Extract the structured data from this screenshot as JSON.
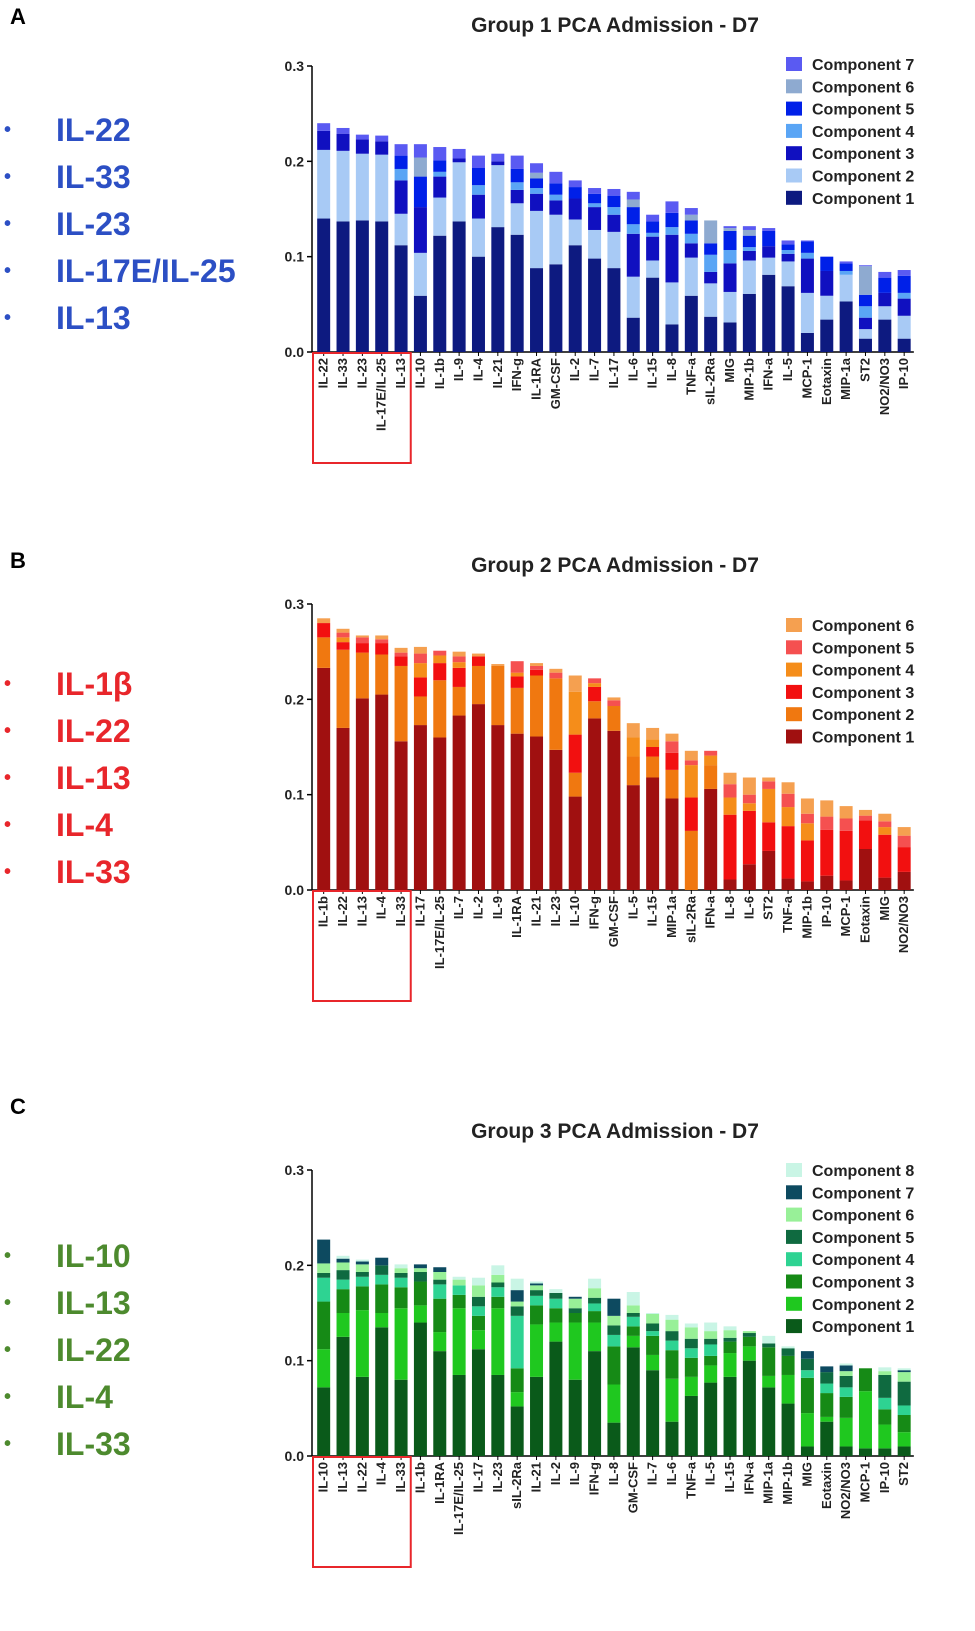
{
  "panels": [
    {
      "letter": "A",
      "cytokine_list": {
        "color": "#2c4fc4",
        "items": [
          "IL-22",
          "IL-33",
          "IL-23",
          "IL-17E/IL-25",
          "IL-13"
        ]
      },
      "chart_data": {
        "type": "bar",
        "stacked": true,
        "title": "Group 1 PCA  Admission -  D7",
        "xlabel": "",
        "ylabel": "",
        "ylim": [
          0,
          0.3
        ],
        "yticks": [
          "0.0",
          "0.1",
          "0.2",
          "0.3"
        ],
        "highlight_first_n": 5,
        "highlight_color": "#e8262b",
        "categories": [
          "IL-22",
          "IL-33",
          "IL-23",
          "IL-17E/IL-25",
          "IL-13",
          "IL-10",
          "IL-1b",
          "IL-9",
          "IL-4",
          "IL-21",
          "IFN-g",
          "IL-1RA",
          "GM-CSF",
          "IL-2",
          "IL-7",
          "IL-17",
          "IL-6",
          "IL-15",
          "IL-8",
          "TNF-a",
          "sIL-2Ra",
          "MIG",
          "MIP-1b",
          "IFN-a",
          "IL-5",
          "MCP-1",
          "Eotaxin",
          "MIP-1a",
          "ST2",
          "NO2/NO3",
          "IP-10"
        ],
        "series": [
          {
            "name": "Component 1",
            "color": "#0d1a80",
            "values": [
              0.14,
              0.137,
              0.138,
              0.137,
              0.112,
              0.059,
              0.122,
              0.137,
              0.1,
              0.131,
              0.123,
              0.088,
              0.092,
              0.112,
              0.098,
              0.088,
              0.036,
              0.078,
              0.029,
              0.059,
              0.037,
              0.031,
              0.061,
              0.081,
              0.069,
              0.02,
              0.034,
              0.053,
              0.014,
              0.034,
              0.014
            ]
          },
          {
            "name": "Component 2",
            "color": "#a8caf5",
            "values": [
              0.072,
              0.074,
              0.07,
              0.07,
              0.033,
              0.045,
              0.04,
              0.062,
              0.04,
              0.065,
              0.033,
              0.06,
              0.052,
              0.027,
              0.03,
              0.038,
              0.043,
              0.018,
              0.044,
              0.04,
              0.035,
              0.032,
              0.035,
              0.018,
              0.026,
              0.042,
              0.025,
              0.028,
              0.01,
              0.014,
              0.024
            ]
          },
          {
            "name": "Component 3",
            "color": "#1010c0",
            "values": [
              0.02,
              0.018,
              0.015,
              0.014,
              0.035,
              0.048,
              0.022,
              0.004,
              0.025,
              0.004,
              0.014,
              0.018,
              0.015,
              0.022,
              0.024,
              0.018,
              0.045,
              0.025,
              0.05,
              0.015,
              0.012,
              0.03,
              0.01,
              0.012,
              0.008,
              0.036,
              0.026,
              0.0,
              0.012,
              0.014,
              0.018
            ]
          },
          {
            "name": "Component 4",
            "color": "#5aa5f5",
            "values": [
              0.0,
              0.0,
              0.0,
              0.0,
              0.012,
              0.0,
              0.005,
              0.0,
              0.01,
              0.0,
              0.008,
              0.006,
              0.006,
              0.0,
              0.004,
              0.008,
              0.01,
              0.004,
              0.008,
              0.01,
              0.018,
              0.014,
              0.004,
              0.0,
              0.004,
              0.006,
              0.0,
              0.004,
              0.012,
              0.0,
              0.006
            ]
          },
          {
            "name": "Component 5",
            "color": "#0020e8",
            "values": [
              0.0,
              0.0,
              0.0,
              0.0,
              0.014,
              0.032,
              0.012,
              0.0,
              0.018,
              0.0,
              0.014,
              0.01,
              0.012,
              0.012,
              0.01,
              0.012,
              0.018,
              0.012,
              0.015,
              0.014,
              0.012,
              0.02,
              0.012,
              0.016,
              0.006,
              0.012,
              0.015,
              0.008,
              0.012,
              0.016,
              0.018
            ]
          },
          {
            "name": "Component 6",
            "color": "#8eaad0",
            "values": [
              0.0,
              0.0,
              0.0,
              0.0,
              0.0,
              0.02,
              0.0,
              0.0,
              0.0,
              0.0,
              0.0,
              0.006,
              0.0,
              0.0,
              0.0,
              0.0,
              0.008,
              0.0,
              0.0,
              0.006,
              0.024,
              0.003,
              0.006,
              0.0,
              0.0,
              0.0,
              0.0,
              0.0,
              0.03,
              0.0,
              0.0
            ]
          },
          {
            "name": "Component 7",
            "color": "#5a5af2",
            "values": [
              0.008,
              0.006,
              0.005,
              0.006,
              0.012,
              0.014,
              0.014,
              0.01,
              0.013,
              0.008,
              0.014,
              0.01,
              0.012,
              0.007,
              0.006,
              0.007,
              0.008,
              0.007,
              0.012,
              0.007,
              0.0,
              0.002,
              0.004,
              0.003,
              0.004,
              0.001,
              0.0,
              0.002,
              0.001,
              0.006,
              0.006
            ]
          }
        ]
      }
    },
    {
      "letter": "B",
      "cytokine_list": {
        "color": "#e8262b",
        "items": [
          "IL-1β",
          "IL-22",
          "IL-13",
          "IL-4",
          "IL-33"
        ]
      },
      "chart_data": {
        "type": "bar",
        "stacked": true,
        "title": "Group 2 PCA  Admission -  D7",
        "xlabel": "",
        "ylabel": "",
        "ylim": [
          0,
          0.3
        ],
        "yticks": [
          "0.0",
          "0.1",
          "0.2",
          "0.3"
        ],
        "highlight_first_n": 5,
        "highlight_color": "#e8262b",
        "categories": [
          "IL-1b",
          "IL-22",
          "IL-13",
          "IL-4",
          "IL-33",
          "IL-17",
          "IL-17E/IL-25",
          "IL-7",
          "IL-2",
          "IL-9",
          "IL-1RA",
          "IL-21",
          "IL-23",
          "IL-10",
          "IFN-g",
          "GM-CSF",
          "IL-5",
          "IL-15",
          "MIP-1a",
          "sIL-2Ra",
          "IFN-a",
          "IL-8",
          "IL-6",
          "ST2",
          "TNF-a",
          "MIP-1b",
          "IP-10",
          "MCP-1",
          "Eotaxin",
          "MIG",
          "NO2/NO3"
        ],
        "series": [
          {
            "name": "Component 1",
            "color": "#a01010",
            "values": [
              0.233,
              0.17,
              0.201,
              0.205,
              0.156,
              0.173,
              0.16,
              0.183,
              0.195,
              0.173,
              0.164,
              0.161,
              0.147,
              0.098,
              0.18,
              0.167,
              0.11,
              0.118,
              0.096,
              0.0,
              0.106,
              0.011,
              0.027,
              0.041,
              0.012,
              0.009,
              0.015,
              0.01,
              0.043,
              0.013,
              0.019
            ]
          },
          {
            "name": "Component 2",
            "color": "#f07810",
            "values": [
              0.032,
              0.082,
              0.048,
              0.042,
              0.079,
              0.03,
              0.06,
              0.03,
              0.04,
              0.062,
              0.048,
              0.064,
              0.075,
              0.025,
              0.018,
              0.026,
              0.03,
              0.022,
              0.03,
              0.062,
              0.025,
              0.0,
              0.0,
              0.0,
              0.0,
              0.0,
              0.0,
              0.0,
              0.0,
              0.0,
              0.0
            ]
          },
          {
            "name": "Component 3",
            "color": "#f21010",
            "values": [
              0.015,
              0.008,
              0.01,
              0.012,
              0.01,
              0.02,
              0.018,
              0.02,
              0.01,
              0.0,
              0.012,
              0.006,
              0.0,
              0.04,
              0.015,
              0.0,
              0.0,
              0.01,
              0.018,
              0.035,
              0.0,
              0.068,
              0.056,
              0.03,
              0.055,
              0.043,
              0.048,
              0.052,
              0.03,
              0.045,
              0.026
            ]
          },
          {
            "name": "Component 4",
            "color": "#f58d1a",
            "values": [
              0.0,
              0.005,
              0.0,
              0.0,
              0.0,
              0.015,
              0.008,
              0.006,
              0.0,
              0.0,
              0.004,
              0.0,
              0.0,
              0.045,
              0.004,
              0.0,
              0.02,
              0.008,
              0.0,
              0.034,
              0.01,
              0.018,
              0.008,
              0.035,
              0.02,
              0.018,
              0.0,
              0.0,
              0.0,
              0.008,
              0.0
            ]
          },
          {
            "name": "Component 5",
            "color": "#f55050",
            "values": [
              0.0,
              0.005,
              0.006,
              0.004,
              0.004,
              0.01,
              0.005,
              0.006,
              0.0,
              0.0,
              0.012,
              0.004,
              0.006,
              0.0,
              0.005,
              0.006,
              0.0,
              0.0,
              0.012,
              0.005,
              0.005,
              0.014,
              0.009,
              0.008,
              0.014,
              0.01,
              0.014,
              0.013,
              0.005,
              0.006,
              0.012
            ]
          },
          {
            "name": "Component 6",
            "color": "#f5a050",
            "values": [
              0.005,
              0.004,
              0.002,
              0.004,
              0.005,
              0.007,
              0.0,
              0.005,
              0.003,
              0.002,
              0.0,
              0.003,
              0.004,
              0.017,
              0.0,
              0.003,
              0.015,
              0.012,
              0.008,
              0.01,
              0.0,
              0.012,
              0.018,
              0.004,
              0.012,
              0.016,
              0.017,
              0.013,
              0.006,
              0.008,
              0.009
            ]
          }
        ]
      }
    },
    {
      "letter": "C",
      "cytokine_list": {
        "color": "#4d8a2e",
        "items": [
          "IL-10",
          "IL-13",
          "IL-22",
          "IL-4",
          "IL-33"
        ]
      },
      "chart_data": {
        "type": "bar",
        "stacked": true,
        "title": "Group 3 PCA  Admission -  D7",
        "xlabel": "",
        "ylabel": "",
        "ylim": [
          0,
          0.3
        ],
        "yticks": [
          "0.0",
          "0.1",
          "0.2",
          "0.3"
        ],
        "highlight_first_n": 5,
        "highlight_color": "#e8262b",
        "categories": [
          "IL-10",
          "IL-13",
          "IL-22",
          "IL-4",
          "IL-33",
          "IL-1b",
          "IL-1RA",
          "IL-17E/IL-25",
          "IL-17",
          "IL-23",
          "sIL-2Ra",
          "IL-21",
          "IL-2",
          "IL-9",
          "IFN-g",
          "IL-8",
          "GM-CSF",
          "IL-7",
          "IL-6",
          "TNF-a",
          "IL-5",
          "IL-15",
          "IFN-a",
          "MIP-1a",
          "MIP-1b",
          "MIG",
          "Eotaxin",
          "NO2/NO3",
          "MCP-1",
          "IP-10",
          "ST2"
        ],
        "series": [
          {
            "name": "Component 1",
            "color": "#0a5a1a",
            "values": [
              0.072,
              0.125,
              0.083,
              0.135,
              0.08,
              0.14,
              0.11,
              0.085,
              0.112,
              0.085,
              0.052,
              0.083,
              0.12,
              0.08,
              0.11,
              0.035,
              0.114,
              0.09,
              0.036,
              0.063,
              0.077,
              0.083,
              0.1,
              0.072,
              0.055,
              0.01,
              0.036,
              0.01,
              0.008,
              0.008,
              0.01
            ]
          },
          {
            "name": "Component 2",
            "color": "#1fc81f",
            "values": [
              0.04,
              0.025,
              0.07,
              0.015,
              0.075,
              0.018,
              0.02,
              0.07,
              0.02,
              0.07,
              0.015,
              0.055,
              0.02,
              0.06,
              0.03,
              0.04,
              0.012,
              0.016,
              0.045,
              0.02,
              0.018,
              0.025,
              0.015,
              0.012,
              0.03,
              0.035,
              0.005,
              0.03,
              0.06,
              0.025,
              0.015
            ]
          },
          {
            "name": "Component 3",
            "color": "#168a16",
            "values": [
              0.05,
              0.025,
              0.025,
              0.03,
              0.022,
              0.025,
              0.035,
              0.014,
              0.015,
              0.012,
              0.025,
              0.02,
              0.015,
              0.01,
              0.012,
              0.04,
              0.01,
              0.02,
              0.03,
              0.02,
              0.01,
              0.012,
              0.01,
              0.03,
              0.02,
              0.037,
              0.025,
              0.022,
              0.024,
              0.016,
              0.018
            ]
          },
          {
            "name": "Component 4",
            "color": "#2ed392",
            "values": [
              0.025,
              0.01,
              0.01,
              0.01,
              0.01,
              0.0,
              0.015,
              0.01,
              0.01,
              0.01,
              0.055,
              0.01,
              0.01,
              0.0,
              0.008,
              0.012,
              0.01,
              0.005,
              0.01,
              0.01,
              0.012,
              0.0,
              0.0,
              0.0,
              0.0,
              0.008,
              0.01,
              0.01,
              0.0,
              0.012,
              0.01
            ]
          },
          {
            "name": "Component 5",
            "color": "#0f6a40",
            "values": [
              0.005,
              0.01,
              0.005,
              0.01,
              0.005,
              0.01,
              0.005,
              0.0,
              0.01,
              0.005,
              0.01,
              0.006,
              0.006,
              0.005,
              0.006,
              0.01,
              0.004,
              0.008,
              0.01,
              0.01,
              0.006,
              0.004,
              0.004,
              0.004,
              0.008,
              0.012,
              0.012,
              0.012,
              0.0,
              0.024,
              0.025
            ]
          },
          {
            "name": "Component 6",
            "color": "#98f098",
            "values": [
              0.01,
              0.008,
              0.008,
              0.0,
              0.005,
              0.004,
              0.008,
              0.006,
              0.012,
              0.008,
              0.005,
              0.005,
              0.0,
              0.01,
              0.01,
              0.01,
              0.008,
              0.01,
              0.012,
              0.012,
              0.008,
              0.008,
              0.002,
              0.0,
              0.0,
              0.0,
              0.0,
              0.005,
              0.0,
              0.004,
              0.01
            ]
          },
          {
            "name": "Component 7",
            "color": "#0d4a60",
            "values": [
              0.025,
              0.004,
              0.003,
              0.008,
              0.0,
              0.004,
              0.005,
              0.0,
              0.0,
              0.0,
              0.012,
              0.002,
              0.0,
              0.002,
              0.0,
              0.018,
              0.0,
              0.0,
              0.0,
              0.0,
              0.0,
              0.0,
              0.0,
              0.0,
              0.0,
              0.008,
              0.006,
              0.006,
              0.0,
              0.0,
              0.002
            ]
          },
          {
            "name": "Component 8",
            "color": "#c9f5e5",
            "values": [
              0.0,
              0.003,
              0.002,
              0.0,
              0.004,
              0.0,
              0.0,
              0.003,
              0.008,
              0.01,
              0.012,
              0.002,
              0.004,
              0.0,
              0.01,
              0.0,
              0.014,
              0.001,
              0.005,
              0.004,
              0.009,
              0.004,
              0.0,
              0.008,
              0.002,
              0.0,
              0.0,
              0.002,
              0.0,
              0.004,
              0.002
            ]
          }
        ]
      }
    }
  ]
}
